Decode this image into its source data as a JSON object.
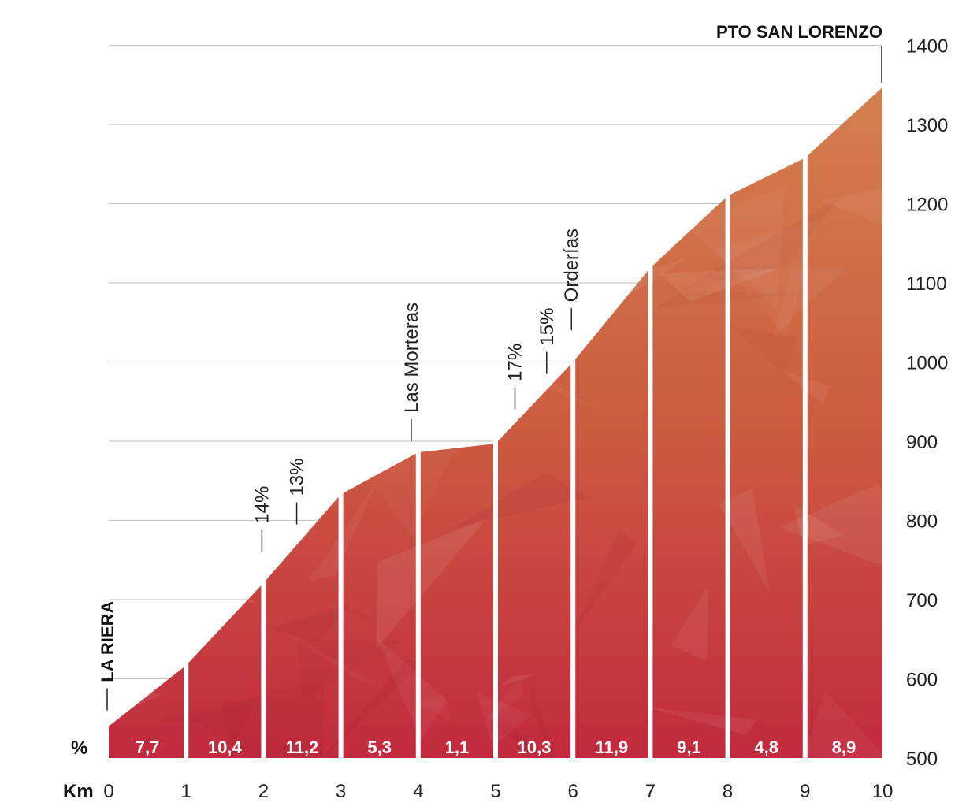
{
  "chart_data": {
    "type": "area",
    "title": "",
    "xlabel": "Km",
    "ylabel": "",
    "grade_row_label": "%",
    "xlim": [
      0,
      10
    ],
    "ylim": [
      500,
      1400
    ],
    "x_ticks": [
      "0",
      "1",
      "2",
      "3",
      "4",
      "5",
      "6",
      "7",
      "8",
      "9",
      "10"
    ],
    "y_ticks": [
      "500",
      "600",
      "700",
      "800",
      "900",
      "1000",
      "1100",
      "1200",
      "1300",
      "1400"
    ],
    "km": [
      0,
      1,
      2,
      3,
      4,
      5,
      6,
      7,
      8,
      9,
      10
    ],
    "altitude": [
      540,
      617,
      721,
      833,
      886,
      897,
      1000,
      1119,
      1210,
      1258,
      1347
    ],
    "segments": [
      {
        "from": 0,
        "to": 1,
        "grade": "7,7"
      },
      {
        "from": 1,
        "to": 2,
        "grade": "10,4"
      },
      {
        "from": 2,
        "to": 3,
        "grade": "11,2"
      },
      {
        "from": 3,
        "to": 4,
        "grade": "5,3"
      },
      {
        "from": 4,
        "to": 5,
        "grade": "1,1"
      },
      {
        "from": 5,
        "to": 6,
        "grade": "10,3"
      },
      {
        "from": 6,
        "to": 7,
        "grade": "11,9"
      },
      {
        "from": 7,
        "to": 8,
        "grade": "9,1"
      },
      {
        "from": 8,
        "to": 9,
        "grade": "4,8"
      },
      {
        "from": 9,
        "to": 10,
        "grade": "8,9"
      }
    ],
    "annotations": [
      {
        "text": "LA RIERA",
        "km": 0.0,
        "altitude": 560,
        "style": "bold"
      },
      {
        "text": "14%",
        "km": 2.0,
        "altitude": 760,
        "style": "normal"
      },
      {
        "text": "13%",
        "km": 2.45,
        "altitude": 795,
        "style": "normal"
      },
      {
        "text": "Las Morteras",
        "km": 3.93,
        "altitude": 900,
        "style": "normal"
      },
      {
        "text": "17%",
        "km": 5.27,
        "altitude": 940,
        "style": "normal"
      },
      {
        "text": "15%",
        "km": 5.68,
        "altitude": 985,
        "style": "normal"
      },
      {
        "text": "Orderías",
        "km": 6.0,
        "altitude": 1040,
        "style": "normal"
      },
      {
        "text": "PTO SAN LORENZO",
        "km": 10.0,
        "altitude": 1360,
        "style": "bold-top"
      }
    ],
    "colors": {
      "top": "#d4844f",
      "mid": "#cc5a40",
      "bottom": "#c22a3e",
      "gridline": "#c9c9c9",
      "divider": "#ffffff"
    }
  }
}
